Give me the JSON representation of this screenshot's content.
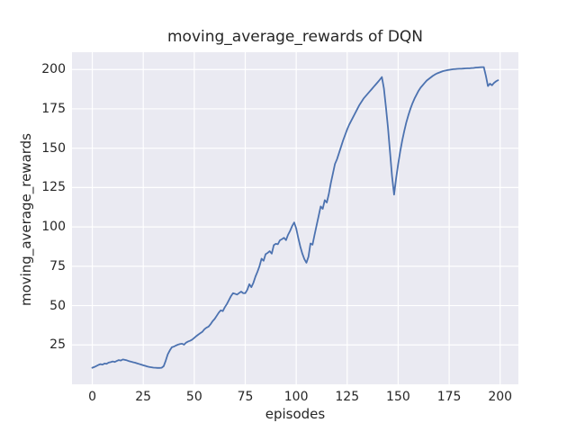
{
  "chart_data": {
    "type": "line",
    "title": "moving_average_rewards of DQN",
    "xlabel": "episodes",
    "ylabel": "moving_average_rewards",
    "x_ticks": [
      0,
      25,
      50,
      75,
      100,
      125,
      150,
      175,
      200
    ],
    "y_ticks": [
      25,
      50,
      75,
      100,
      125,
      150,
      175,
      200
    ],
    "xlim": [
      -9.95,
      208.95
    ],
    "ylim": [
      0,
      211
    ],
    "grid": true,
    "legend": null,
    "style": {
      "line_color": "#4c72b0",
      "line_width": 1.8,
      "axes_background": "#eaeaf2",
      "grid_color": "#ffffff",
      "text_color": "#262626",
      "figure_background": "#ffffff"
    },
    "series": [
      {
        "name": "moving_average_rewards",
        "x_start": 0,
        "x_step": 1,
        "values": [
          10.5,
          11.0,
          11.6,
          12.3,
          12.8,
          12.5,
          13.2,
          13.0,
          13.8,
          14.1,
          14.5,
          14.2,
          14.8,
          15.4,
          15.1,
          15.8,
          15.5,
          15.2,
          14.7,
          14.4,
          14.0,
          13.7,
          13.3,
          12.9,
          12.5,
          12.1,
          11.7,
          11.3,
          11.0,
          10.8,
          10.6,
          10.5,
          10.4,
          10.4,
          10.5,
          11.5,
          15.0,
          19.0,
          21.5,
          23.5,
          24.0,
          24.6,
          25.2,
          25.6,
          25.8,
          25.2,
          26.5,
          27.2,
          27.7,
          28.4,
          29.5,
          30.6,
          31.6,
          32.5,
          33.4,
          35.0,
          36.0,
          36.6,
          38.2,
          40.1,
          41.5,
          43.5,
          45.5,
          47.0,
          46.5,
          49.0,
          51.0,
          53.5,
          56.0,
          57.9,
          57.5,
          57.0,
          58.0,
          58.9,
          57.9,
          57.9,
          60.0,
          63.6,
          61.7,
          64.5,
          68.4,
          71.5,
          75.1,
          79.8,
          78.5,
          82.7,
          83.5,
          84.6,
          83.0,
          88.4,
          89.3,
          89.0,
          91.5,
          92.2,
          93.1,
          91.6,
          95.0,
          97.5,
          100.5,
          102.8,
          99.0,
          93.0,
          87.5,
          83.0,
          79.5,
          77.2,
          81.0,
          89.5,
          88.7,
          95.0,
          101.0,
          107.0,
          113.0,
          111.5,
          117.0,
          115.5,
          121.0,
          128.0,
          134.0,
          140.0,
          143.0,
          147.0,
          151.0,
          155.0,
          158.5,
          162.0,
          165.0,
          167.5,
          170.0,
          172.5,
          175.0,
          177.5,
          179.5,
          181.5,
          183.0,
          184.5,
          186.0,
          187.5,
          189.0,
          190.5,
          192.0,
          193.5,
          195.2,
          188.0,
          176.0,
          163.0,
          147.5,
          132.0,
          120.5,
          131.0,
          140.0,
          148.0,
          155.0,
          161.0,
          166.5,
          171.0,
          175.0,
          178.5,
          181.5,
          184.0,
          186.5,
          188.5,
          190.0,
          191.5,
          193.0,
          194.0,
          195.0,
          196.0,
          196.8,
          197.5,
          198.0,
          198.5,
          199.0,
          199.3,
          199.6,
          199.8,
          200.0,
          200.2,
          200.3,
          200.4,
          200.5,
          200.5,
          200.6,
          200.7,
          200.8,
          200.8,
          200.9,
          201.0,
          201.2,
          201.3,
          201.4,
          201.5,
          201.5,
          196.0,
          189.5,
          191.0,
          190.0,
          191.5,
          192.5,
          193.2
        ]
      }
    ]
  }
}
